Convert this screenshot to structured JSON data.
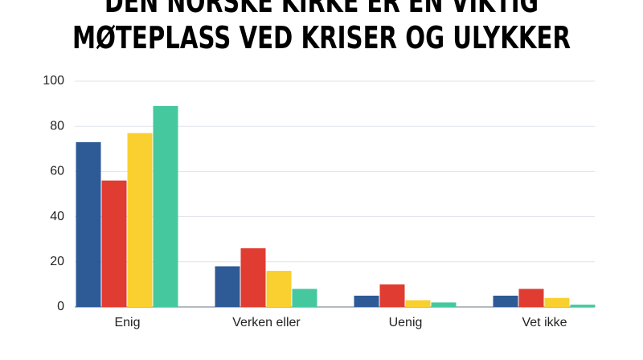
{
  "chart_data": {
    "type": "bar",
    "title": [
      "DEN NORSKE KIRKE ER EN VIKTIG",
      "MØTEPLASS VED KRISER OG ULYKKER"
    ],
    "categories": [
      "Enig",
      "Verken eller",
      "Uenig",
      "Vet ikke"
    ],
    "series": [
      {
        "color": "#2e5a96",
        "values": [
          73,
          18,
          5,
          5
        ]
      },
      {
        "color": "#e03c31",
        "values": [
          56,
          26,
          10,
          8
        ]
      },
      {
        "color": "#f9d030",
        "values": [
          77,
          16,
          3,
          4
        ]
      },
      {
        "color": "#45c89e",
        "values": [
          89,
          8,
          2,
          1
        ]
      }
    ],
    "ylim": [
      0,
      100
    ],
    "yticks": [
      0,
      20,
      40,
      60,
      80,
      100
    ],
    "grid": true
  }
}
